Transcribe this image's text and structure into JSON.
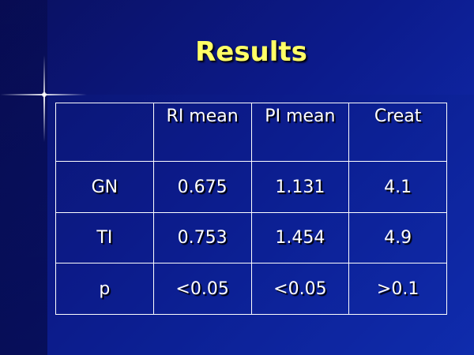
{
  "title": "Results",
  "table": {
    "header": [
      "RI mean",
      "PI mean",
      "Creat"
    ],
    "rows": [
      [
        "GN",
        "0.675",
        "1.131",
        "4.1"
      ],
      [
        "TI",
        "0.753",
        "1.454",
        "4.9"
      ],
      [
        "p",
        "<0.05",
        "<0.05",
        ">0.1"
      ]
    ]
  }
}
